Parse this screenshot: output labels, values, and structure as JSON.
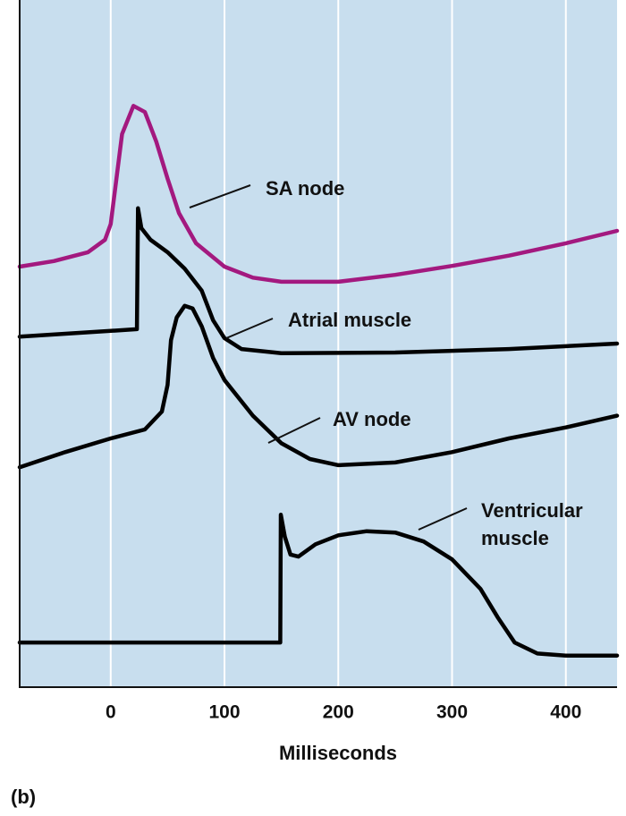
{
  "chart_data": {
    "type": "line",
    "x_label": "Milliseconds",
    "panel_label": "(b)",
    "xlim": [
      -80,
      445
    ],
    "xticks": [
      0,
      100,
      200,
      300,
      400
    ],
    "ylim": [
      0,
      100
    ],
    "grid": true,
    "series": [
      {
        "name": "SA node",
        "color": "#a3197f",
        "x": [
          -80,
          -50,
          -20,
          -5,
          0,
          5,
          10,
          20,
          30,
          40,
          50,
          60,
          75,
          100,
          125,
          150,
          200,
          250,
          300,
          350,
          400,
          445
        ],
        "values": [
          61.2,
          62.0,
          63.3,
          65.1,
          67.4,
          74.0,
          80.5,
          84.6,
          83.7,
          79.4,
          74.0,
          69.0,
          64.6,
          61.2,
          59.6,
          59.0,
          59.0,
          60.0,
          61.3,
          62.8,
          64.6,
          66.4
        ]
      },
      {
        "name": "Atrial muscle",
        "color": "#000000",
        "x": [
          -80,
          23,
          24,
          27,
          35,
          50,
          65,
          80,
          90,
          100,
          115,
          150,
          250,
          350,
          445
        ],
        "values": [
          51.0,
          52.1,
          69.7,
          66.8,
          65.1,
          63.3,
          60.9,
          57.7,
          53.4,
          50.8,
          49.2,
          48.6,
          48.7,
          49.2,
          50.0
        ]
      },
      {
        "name": "AV node",
        "color": "#000000",
        "x": [
          -80,
          -40,
          0,
          30,
          45,
          50,
          53,
          58,
          65,
          72,
          80,
          90,
          100,
          125,
          150,
          175,
          200,
          250,
          300,
          350,
          400,
          445
        ],
        "values": [
          32.0,
          34.2,
          36.2,
          37.5,
          40.1,
          44.0,
          50.5,
          53.8,
          55.5,
          55.1,
          52.5,
          47.9,
          44.7,
          39.5,
          35.5,
          33.2,
          32.3,
          32.7,
          34.2,
          36.2,
          37.8,
          39.5
        ]
      },
      {
        "name": "Ventricular muscle",
        "color": "#000000",
        "x": [
          -80,
          149,
          149.5,
          153,
          158,
          165,
          180,
          200,
          225,
          250,
          275,
          300,
          325,
          340,
          355,
          375,
          400,
          445
        ],
        "values": [
          6.5,
          6.5,
          25.1,
          21.9,
          19.3,
          19.0,
          20.8,
          22.1,
          22.7,
          22.5,
          21.2,
          18.6,
          14.3,
          10.2,
          6.5,
          4.9,
          4.6,
          4.6
        ]
      }
    ]
  }
}
